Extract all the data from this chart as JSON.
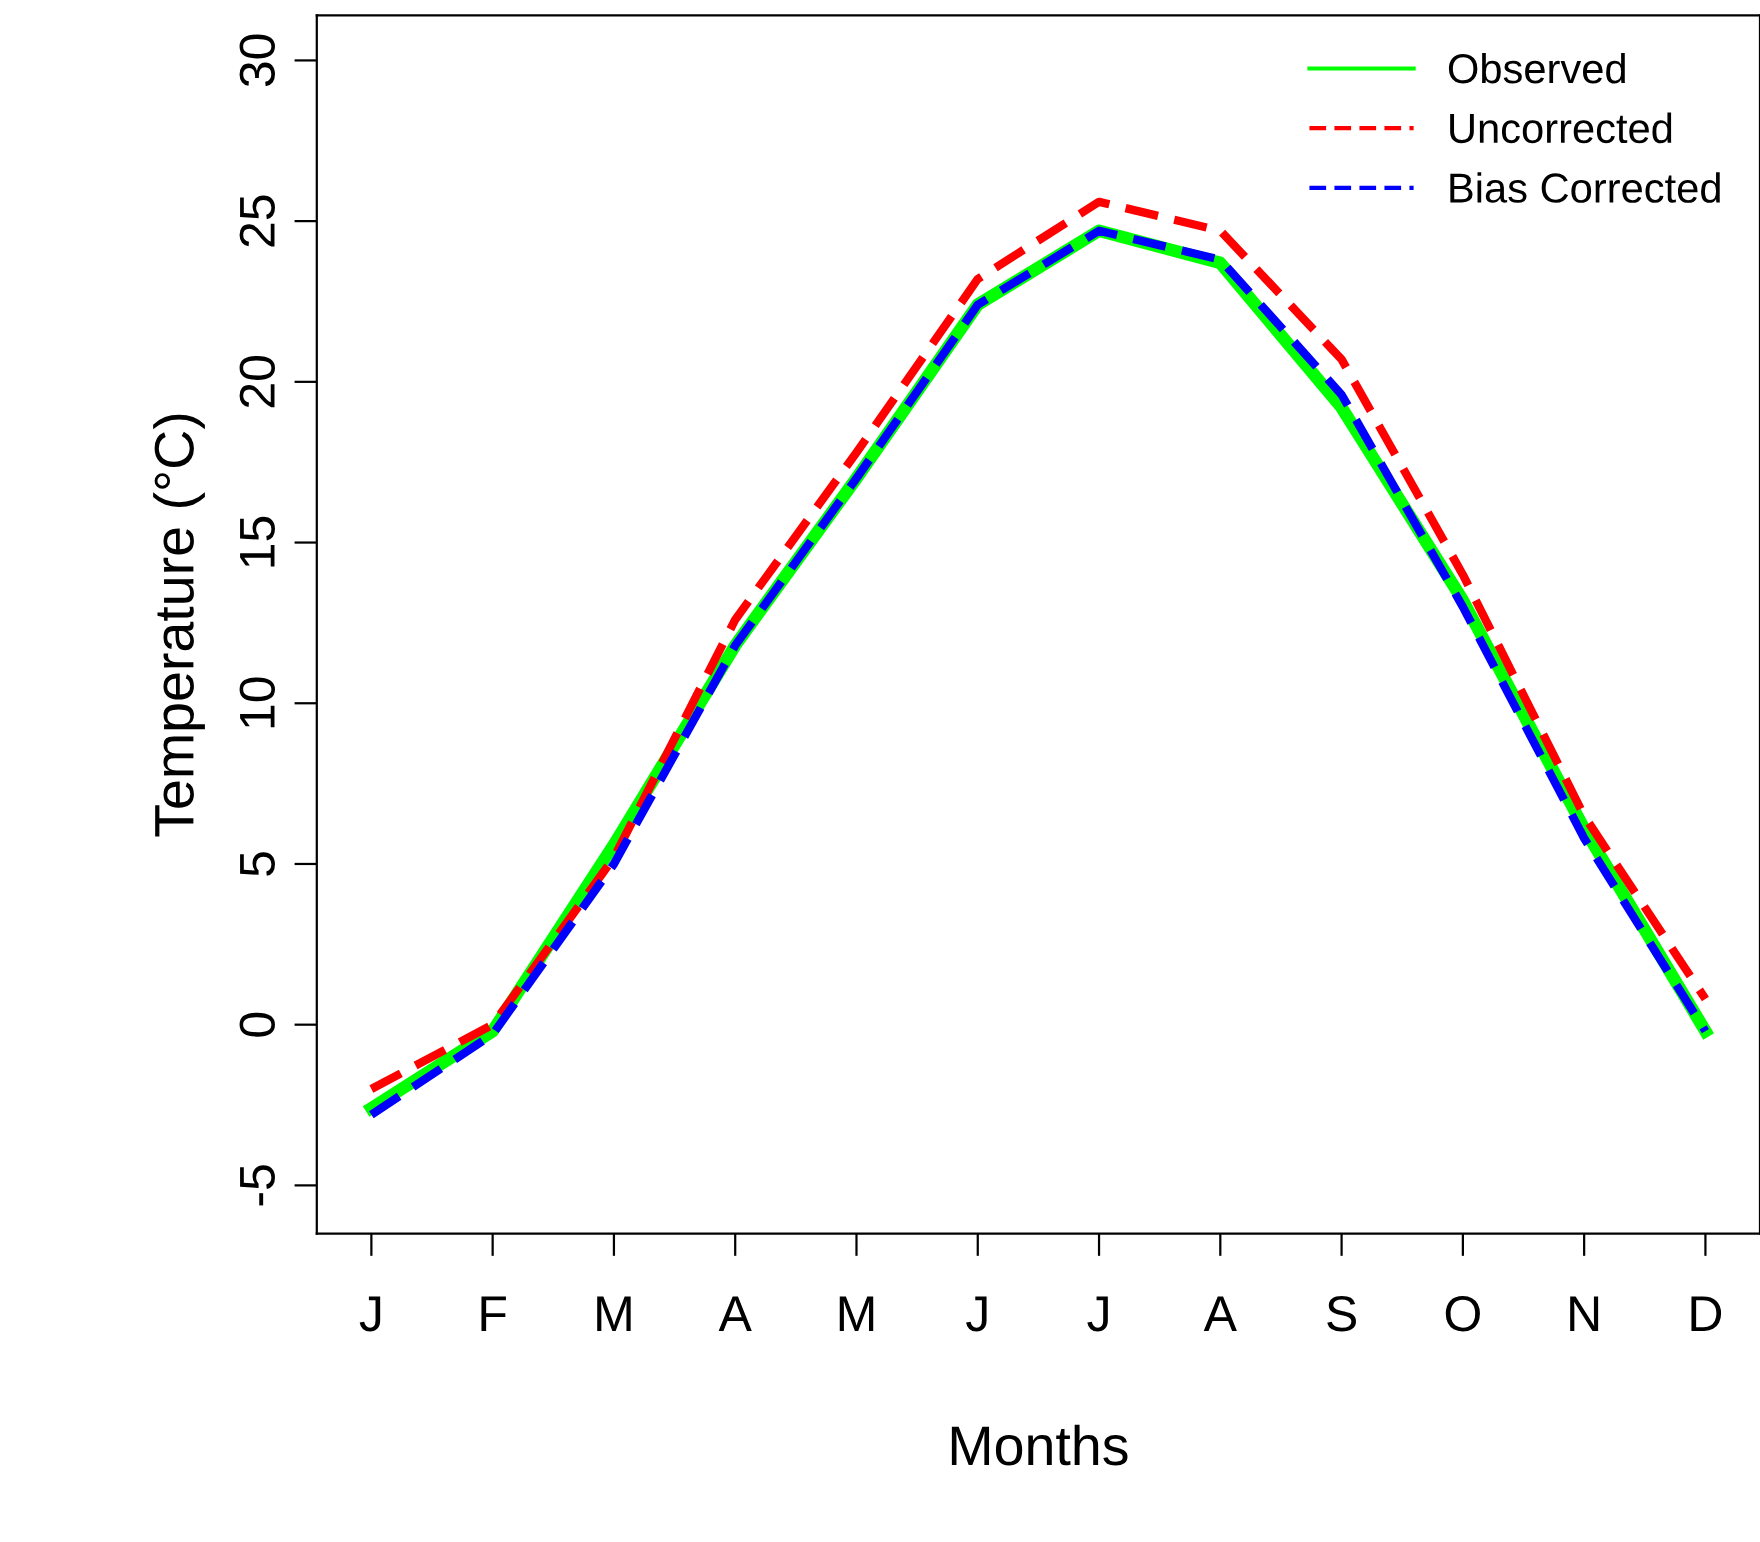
{
  "chart_data": {
    "type": "line",
    "xlabel": "Months",
    "ylabel": "Temperature (°C)",
    "categories": [
      "J",
      "F",
      "M",
      "A",
      "M",
      "J",
      "J",
      "A",
      "S",
      "O",
      "N",
      "D"
    ],
    "series": [
      {
        "name": "Observed",
        "color": "#00ff00",
        "line_style": "solid",
        "values": [
          -2.6,
          -0.2,
          5.6,
          11.8,
          17.0,
          22.4,
          24.7,
          23.7,
          19.2,
          13.2,
          6.1,
          -0.2
        ]
      },
      {
        "name": "Uncorrected",
        "color": "#ff0000",
        "line_style": "dashed",
        "values": [
          -2.0,
          0.0,
          5.2,
          12.6,
          17.8,
          23.2,
          25.6,
          24.7,
          20.7,
          14.0,
          6.5,
          0.8
        ]
      },
      {
        "name": "Bias Corrected",
        "color": "#0000ff",
        "line_style": "dashed",
        "values": [
          -2.8,
          -0.3,
          5.0,
          11.8,
          17.0,
          22.4,
          24.7,
          23.8,
          19.6,
          13.0,
          5.8,
          -0.2
        ]
      }
    ],
    "ylim": [
      -6.5,
      31.4
    ],
    "yticks": [
      -5,
      0,
      5,
      10,
      15,
      20,
      25,
      30
    ],
    "grid": false,
    "legend": "top right",
    "marker": "none"
  }
}
